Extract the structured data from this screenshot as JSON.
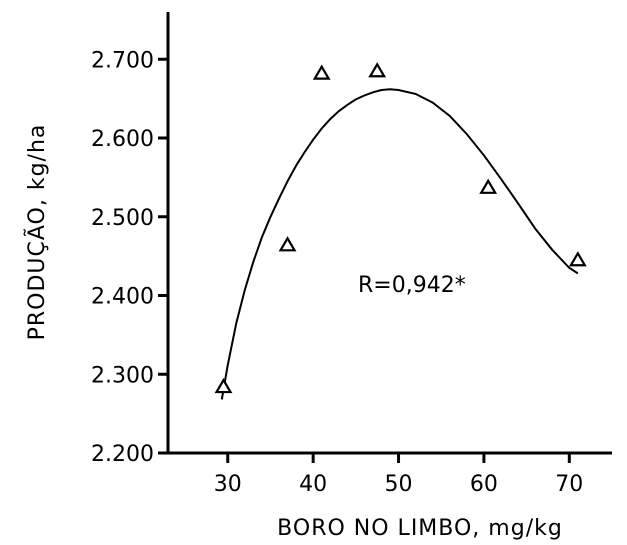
{
  "chart_data": {
    "type": "scatter",
    "xlabel": "BORO NO LIMBO, mg/kg",
    "ylabel": "PRODUÇÃO, kg/ha",
    "xlim": [
      23,
      75
    ],
    "ylim": [
      2200,
      2760
    ],
    "x_ticks": [
      30,
      40,
      50,
      60,
      70
    ],
    "x_tick_labels": [
      "30",
      "40",
      "50",
      "60",
      "70"
    ],
    "y_ticks": [
      2200,
      2300,
      2400,
      2500,
      2600,
      2700
    ],
    "y_tick_labels": [
      "2.200",
      "2.300",
      "2.400",
      "2.500",
      "2.600",
      "2.700"
    ],
    "series": [
      {
        "marker": "triangle",
        "x": [
          29.5,
          37,
          41,
          47.5,
          60.5,
          71
        ],
        "y": [
          2285,
          2465,
          2683,
          2686,
          2538,
          2446
        ]
      }
    ],
    "fit_curve": {
      "x": [
        29.3,
        30,
        31,
        32,
        33,
        34,
        35,
        36,
        37,
        38,
        39,
        40,
        41,
        42,
        43,
        44,
        45,
        46,
        47,
        48,
        49,
        50,
        52,
        54,
        56,
        58,
        60,
        62,
        64,
        66,
        68,
        70,
        71
      ],
      "y": [
        2268,
        2312,
        2365,
        2407,
        2443,
        2474,
        2500,
        2523,
        2545,
        2565,
        2582,
        2598,
        2612,
        2624,
        2634,
        2642,
        2649,
        2654,
        2658,
        2661,
        2662,
        2661,
        2656,
        2645,
        2628,
        2605,
        2578,
        2548,
        2517,
        2485,
        2458,
        2435,
        2428
      ]
    },
    "annotation": "R=0,942*",
    "grid": false,
    "legend": "none"
  }
}
